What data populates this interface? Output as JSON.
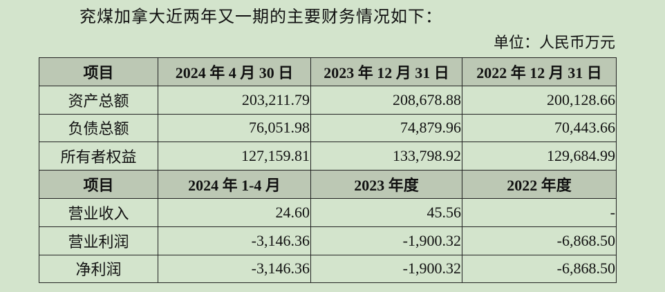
{
  "intro": "兖煤加拿大近两年又一期的主要财务情况如下：",
  "unit": "单位：人民币万元",
  "balance": {
    "header": [
      "项目",
      "2024 年 4 月 30 日",
      "2023 年 12 月 31 日",
      "2022 年 12 月 31 日"
    ],
    "rows": [
      [
        "资产总额",
        "203,211.79",
        "208,678.88",
        "200,128.66"
      ],
      [
        "负债总额",
        "76,051.98",
        "74,879.96",
        "70,443.66"
      ],
      [
        "所有者权益",
        "127,159.81",
        "133,798.92",
        "129,684.99"
      ]
    ]
  },
  "income": {
    "header": [
      "项目",
      "2024 年 1-4 月",
      "2023 年度",
      "2022 年度"
    ],
    "rows": [
      [
        "营业收入",
        "24.60",
        "45.56",
        "-"
      ],
      [
        "营业利润",
        "-3,146.36",
        "-1,900.32",
        "-6,868.50"
      ],
      [
        "净利润",
        "-3,146.36",
        "-1,900.32",
        "-6,868.50"
      ]
    ]
  }
}
